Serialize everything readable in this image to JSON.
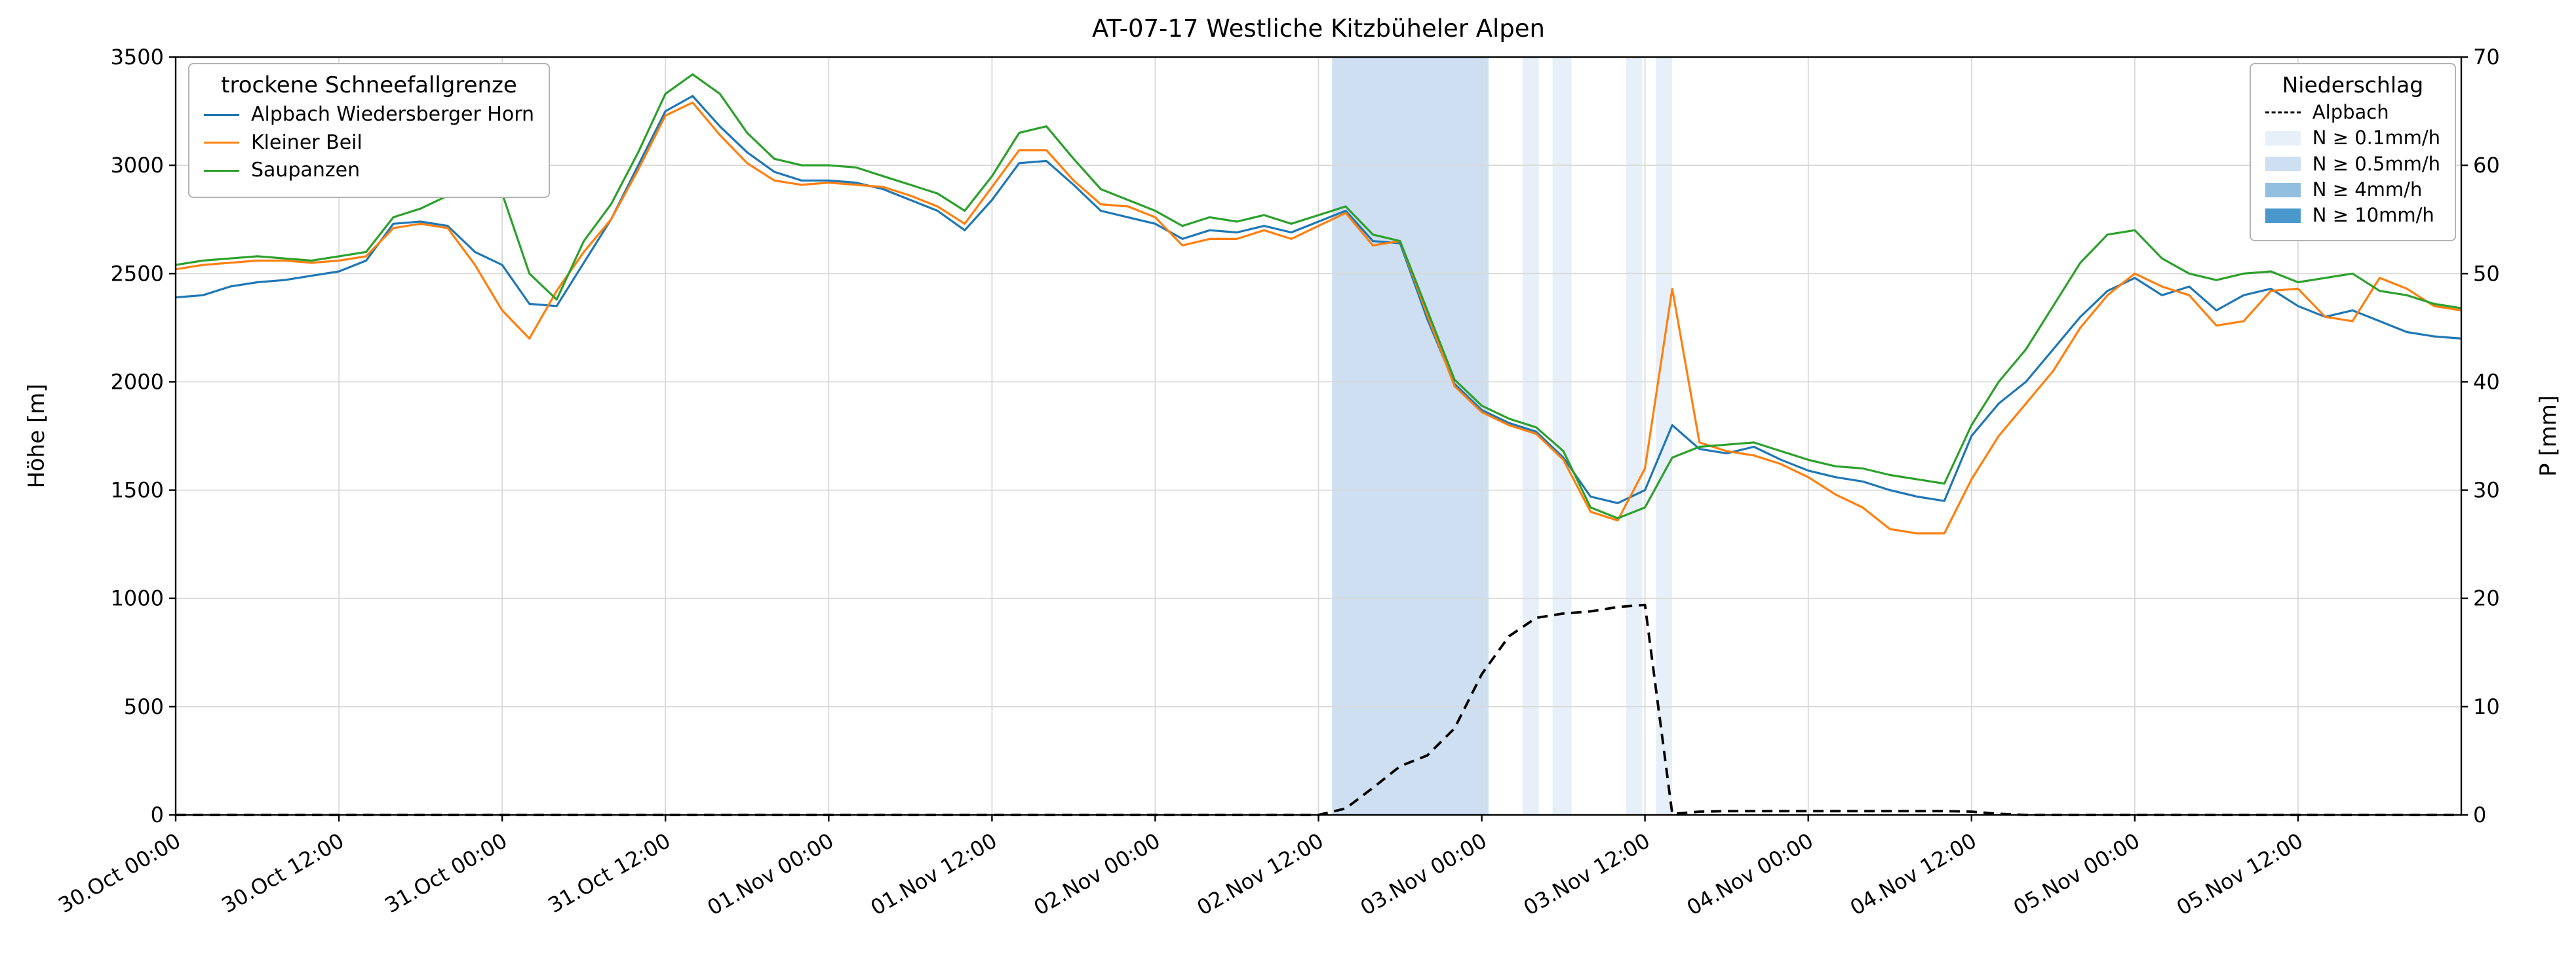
{
  "title": "AT-07-17 Westliche Kitzbüheler Alpen",
  "left_axis": {
    "label": "Höhe [m]",
    "ticks": [
      0,
      500,
      1000,
      1500,
      2000,
      2500,
      3000,
      3500
    ]
  },
  "right_axis": {
    "label": "P [mm]",
    "ticks": [
      0,
      10,
      20,
      30,
      40,
      50,
      60,
      70
    ]
  },
  "x_axis": {
    "ticks": [
      {
        "hour": 0,
        "label": "30.Oct 00:00"
      },
      {
        "hour": 12,
        "label": "30.Oct 12:00"
      },
      {
        "hour": 24,
        "label": "31.Oct 00:00"
      },
      {
        "hour": 36,
        "label": "31.Oct 12:00"
      },
      {
        "hour": 48,
        "label": "01.Nov 00:00"
      },
      {
        "hour": 60,
        "label": "01.Nov 12:00"
      },
      {
        "hour": 72,
        "label": "02.Nov 00:00"
      },
      {
        "hour": 84,
        "label": "02.Nov 12:00"
      },
      {
        "hour": 96,
        "label": "03.Nov 00:00"
      },
      {
        "hour": 108,
        "label": "03.Nov 12:00"
      },
      {
        "hour": 120,
        "label": "04.Nov 00:00"
      },
      {
        "hour": 132,
        "label": "04.Nov 12:00"
      },
      {
        "hour": 144,
        "label": "05.Nov 00:00"
      },
      {
        "hour": 156,
        "label": "05.Nov 12:00"
      }
    ]
  },
  "legend_sfg": {
    "title": "trockene Schneefallgrenze",
    "entries": [
      {
        "label": "Alpbach Wiedersberger Horn",
        "color": "#1f77b4"
      },
      {
        "label": "Kleiner Beil",
        "color": "#ff7f0e"
      },
      {
        "label": "Saupanzen",
        "color": "#2ca02c"
      }
    ]
  },
  "legend_precip": {
    "title": "Niederschlag",
    "line_entry": {
      "label": "Alpbach",
      "color": "#000000"
    },
    "band_entries": [
      {
        "label": "N ≥ 0.1mm/h",
        "color": "#e7f0f9"
      },
      {
        "label": "N ≥ 0.5mm/h",
        "color": "#cddff1"
      },
      {
        "label": "N ≥ 4mm/h",
        "color": "#92bfdf"
      },
      {
        "label": "N ≥ 10mm/h",
        "color": "#4a98cb"
      }
    ]
  },
  "chart_data": {
    "type": "line",
    "title": "AT-07-17 Westliche Kitzbüheler Alpen",
    "xlabel": "",
    "ylabel_left": "Höhe [m]",
    "ylabel_right": "P [mm]",
    "x_range_hours": [
      0,
      168
    ],
    "x_reference": "hours since 30.Oct 00:00",
    "left_ylim": [
      0,
      3500
    ],
    "right_ylim": [
      0,
      70
    ],
    "grid": true,
    "x_hours": [
      0,
      2,
      4,
      6,
      8,
      10,
      12,
      14,
      16,
      18,
      20,
      22,
      24,
      26,
      28,
      30,
      32,
      34,
      36,
      38,
      40,
      42,
      44,
      46,
      48,
      50,
      52,
      54,
      56,
      58,
      60,
      62,
      64,
      66,
      68,
      70,
      72,
      74,
      76,
      78,
      80,
      82,
      84,
      86,
      88,
      90,
      92,
      94,
      96,
      98,
      100,
      102,
      104,
      106,
      108,
      110,
      112,
      114,
      116,
      118,
      120,
      122,
      124,
      126,
      128,
      130,
      132,
      134,
      136,
      138,
      140,
      142,
      144,
      146,
      148,
      150,
      152,
      154,
      156,
      158,
      160,
      162,
      164,
      166,
      168
    ],
    "series": [
      {
        "name": "Alpbach Wiedersberger Horn",
        "axis": "left",
        "color": "#1f77b4",
        "values": [
          2390,
          2400,
          2440,
          2460,
          2470,
          2490,
          2510,
          2560,
          2730,
          2740,
          2720,
          2600,
          2540,
          2360,
          2350,
          2550,
          2750,
          3000,
          3250,
          3320,
          3180,
          3060,
          2970,
          2930,
          2930,
          2920,
          2890,
          2840,
          2790,
          2700,
          2840,
          3010,
          3020,
          2910,
          2790,
          2760,
          2730,
          2660,
          2700,
          2690,
          2720,
          2690,
          2740,
          2790,
          2650,
          2640,
          2290,
          1990,
          1870,
          1810,
          1770,
          1650,
          1470,
          1440,
          1500,
          1800,
          1690,
          1670,
          1700,
          1640,
          1590,
          1560,
          1540,
          1500,
          1470,
          1450,
          1750,
          1900,
          2000,
          2150,
          2300,
          2420,
          2480,
          2400,
          2440,
          2330,
          2400,
          2430,
          2350,
          2300,
          2330,
          2280,
          2230,
          2210,
          2200
        ]
      },
      {
        "name": "Kleiner Beil",
        "axis": "left",
        "color": "#ff7f0e",
        "values": [
          2520,
          2540,
          2550,
          2560,
          2560,
          2550,
          2560,
          2580,
          2710,
          2730,
          2710,
          2540,
          2330,
          2200,
          2420,
          2600,
          2750,
          2980,
          3230,
          3290,
          3140,
          3010,
          2930,
          2910,
          2920,
          2910,
          2900,
          2860,
          2810,
          2730,
          2900,
          3070,
          3070,
          2930,
          2820,
          2810,
          2760,
          2630,
          2660,
          2660,
          2700,
          2660,
          2720,
          2780,
          2630,
          2650,
          2310,
          1980,
          1860,
          1800,
          1760,
          1640,
          1400,
          1360,
          1600,
          2430,
          1720,
          1680,
          1660,
          1620,
          1560,
          1480,
          1420,
          1320,
          1300,
          1300,
          1550,
          1750,
          1900,
          2050,
          2250,
          2400,
          2500,
          2440,
          2400,
          2260,
          2280,
          2420,
          2430,
          2300,
          2280,
          2480,
          2430,
          2350,
          2330
        ]
      },
      {
        "name": "Saupanzen",
        "axis": "left",
        "color": "#2ca02c",
        "values": [
          2540,
          2560,
          2570,
          2580,
          2570,
          2560,
          2580,
          2600,
          2760,
          2800,
          2860,
          2870,
          2870,
          2500,
          2380,
          2650,
          2820,
          3060,
          3330,
          3420,
          3330,
          3150,
          3030,
          3000,
          3000,
          2990,
          2950,
          2910,
          2870,
          2790,
          2950,
          3150,
          3180,
          3030,
          2890,
          2840,
          2790,
          2720,
          2760,
          2740,
          2770,
          2730,
          2770,
          2810,
          2680,
          2650,
          2330,
          2010,
          1890,
          1830,
          1790,
          1680,
          1420,
          1370,
          1420,
          1650,
          1700,
          1710,
          1720,
          1680,
          1640,
          1610,
          1600,
          1570,
          1550,
          1530,
          1800,
          2000,
          2150,
          2350,
          2550,
          2680,
          2700,
          2570,
          2500,
          2470,
          2500,
          2510,
          2460,
          2480,
          2500,
          2420,
          2400,
          2360,
          2340
        ]
      },
      {
        "name": "Alpbach",
        "axis": "right",
        "color": "#000000",
        "dash": "16 10",
        "values": [
          0,
          0,
          0,
          0,
          0,
          0,
          0,
          0,
          0,
          0,
          0,
          0,
          0,
          0,
          0,
          0,
          0,
          0,
          0,
          0,
          0,
          0,
          0,
          0,
          0,
          0,
          0,
          0,
          0,
          0,
          0,
          0,
          0,
          0,
          0,
          0,
          0,
          0,
          0,
          0,
          0,
          0,
          0,
          0.6,
          2.5,
          4.5,
          5.5,
          8,
          13,
          16.5,
          18.2,
          18.6,
          18.8,
          19.2,
          19.4,
          0.1,
          0.3,
          0.35,
          0.35,
          0.35,
          0.35,
          0.35,
          0.35,
          0.35,
          0.35,
          0.35,
          0.3,
          0.1,
          0,
          0,
          0,
          0,
          0,
          0,
          0,
          0,
          0,
          0,
          0,
          0,
          0,
          0,
          0,
          0,
          0
        ]
      }
    ],
    "precip_bands": [
      {
        "start_hour": 85,
        "end_hour": 96.5,
        "intensity": "N ≥ 0.5mm/h",
        "color": "#cddff1"
      },
      {
        "start_hour": 99,
        "end_hour": 100.2,
        "intensity": "N ≥ 0.1mm/h",
        "color": "#e7f0f9"
      },
      {
        "start_hour": 101.2,
        "end_hour": 102.6,
        "intensity": "N ≥ 0.1mm/h",
        "color": "#e7f0f9"
      },
      {
        "start_hour": 106.6,
        "end_hour": 107.8,
        "intensity": "N ≥ 0.1mm/h",
        "color": "#e7f0f9"
      },
      {
        "start_hour": 108.8,
        "end_hour": 110,
        "intensity": "N ≥ 0.1mm/h",
        "color": "#e7f0f9"
      }
    ]
  }
}
